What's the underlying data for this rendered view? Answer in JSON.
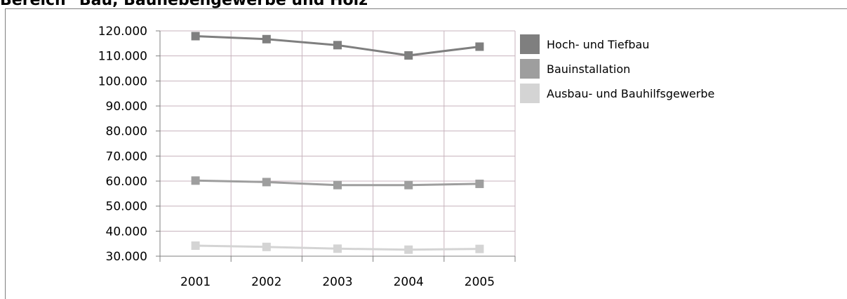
{
  "page": {
    "title": "Bereich \"Bau, Baunebengewerbe und Holz\""
  },
  "chart_data": {
    "type": "line",
    "title": "",
    "xlabel": "",
    "ylabel": "",
    "categories": [
      "2001",
      "2002",
      "2003",
      "2004",
      "2005"
    ],
    "ylim": [
      30000,
      120000
    ],
    "yticks": [
      30000,
      40000,
      50000,
      60000,
      70000,
      80000,
      90000,
      100000,
      110000,
      120000
    ],
    "ytick_labels": [
      "30.000",
      "40.000",
      "50.000",
      "60.000",
      "70.000",
      "80.000",
      "90.000",
      "100.000",
      "110.000",
      "120.000"
    ],
    "grid": true,
    "legend_position": "right",
    "series": [
      {
        "name": "Hoch- und Tiefbau",
        "color": "#7f7f7f",
        "values": [
          117900,
          116700,
          114300,
          110200,
          113700
        ]
      },
      {
        "name": "Bauinstallation",
        "color": "#9e9e9e",
        "values": [
          60200,
          59600,
          58400,
          58400,
          58900
        ]
      },
      {
        "name": "Ausbau- und Bauhilfsgewerbe",
        "color": "#d4d4d4",
        "values": [
          34200,
          33700,
          33000,
          32600,
          32900
        ]
      }
    ]
  }
}
